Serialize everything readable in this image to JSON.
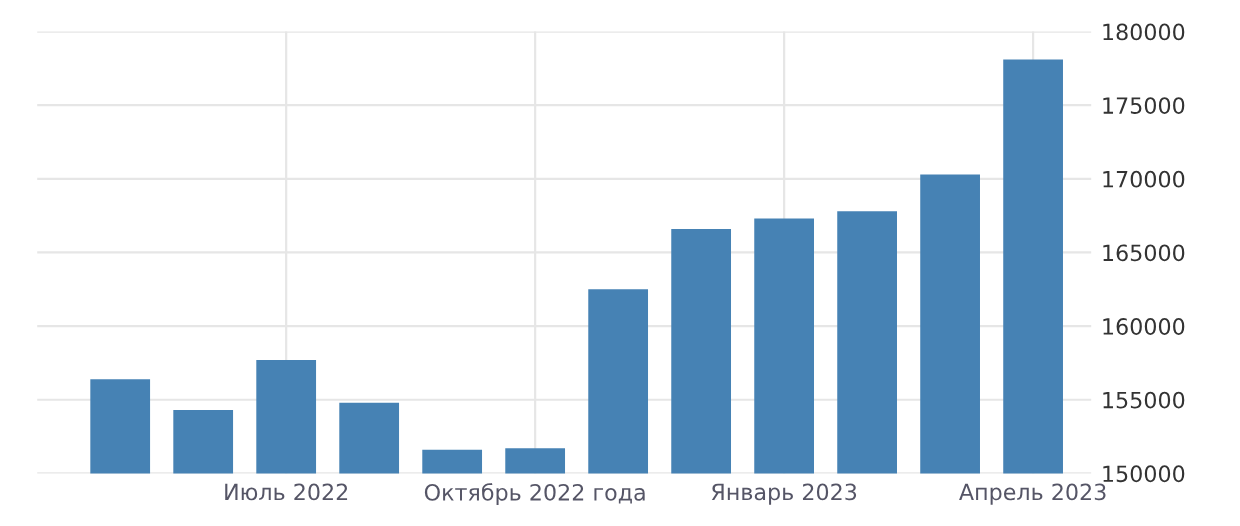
{
  "chart_data": {
    "type": "bar",
    "categories": [
      null,
      null,
      "Июль 2022",
      null,
      null,
      "Октябрь 2022 года",
      null,
      null,
      "Январь 2023",
      null,
      null,
      "Апрель 2023"
    ],
    "values": [
      156400,
      154300,
      157700,
      154800,
      151600,
      151700,
      162500,
      166600,
      167300,
      167800,
      170300,
      178100
    ],
    "color": "#4682b4",
    "ylim": [
      150000,
      180000
    ],
    "yticks": [
      150000,
      155000,
      160000,
      165000,
      170000,
      175000,
      180000
    ],
    "grid": true
  }
}
